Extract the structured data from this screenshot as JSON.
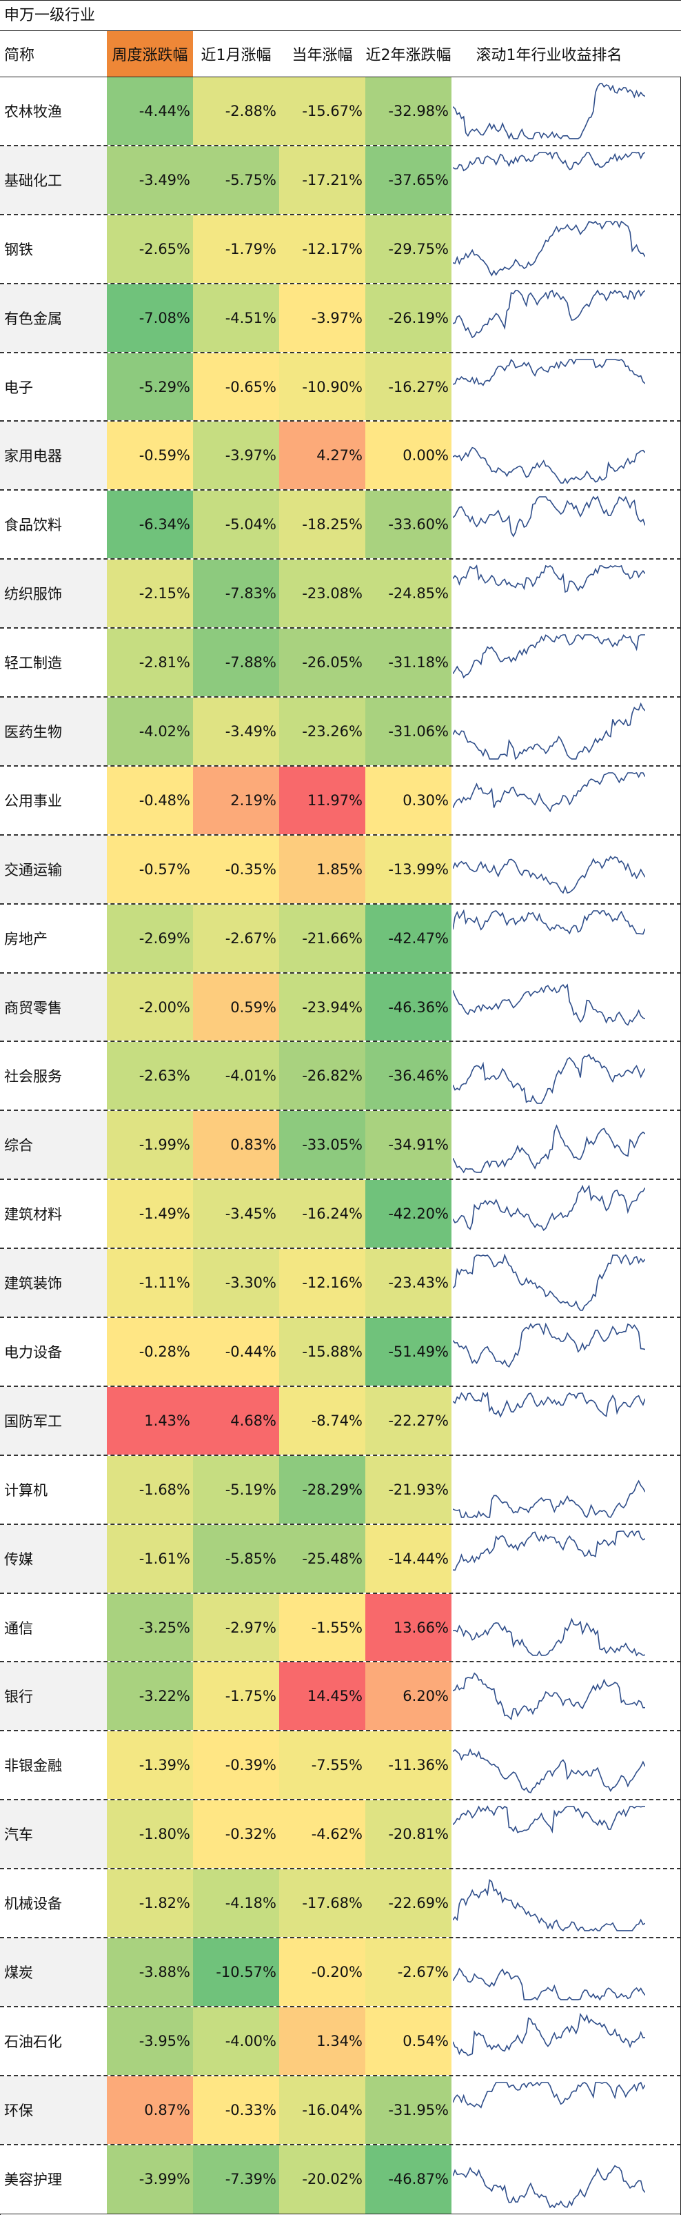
{
  "title": "申万一级行业",
  "header": {
    "name": "简称",
    "weekly": "周度涨跌幅",
    "month": "近1月涨幅",
    "ytd": "当年涨幅",
    "two_year": "近2年涨跌幅",
    "rank": "滚动1年行业收益排名"
  },
  "colors": {
    "header_active": "#ee8737",
    "sparkline": "#2f4e8a"
  },
  "rows": [
    {
      "name": "农林牧渔",
      "weekly": "-4.44%",
      "month": "-2.88%",
      "ytd": "-15.67%",
      "two_year": "-32.98%"
    },
    {
      "name": "基础化工",
      "weekly": "-3.49%",
      "month": "-5.75%",
      "ytd": "-17.21%",
      "two_year": "-37.65%"
    },
    {
      "name": "钢铁",
      "weekly": "-2.65%",
      "month": "-1.79%",
      "ytd": "-12.17%",
      "two_year": "-29.75%"
    },
    {
      "name": "有色金属",
      "weekly": "-7.08%",
      "month": "-4.51%",
      "ytd": "-3.97%",
      "two_year": "-26.19%"
    },
    {
      "name": "电子",
      "weekly": "-5.29%",
      "month": "-0.65%",
      "ytd": "-10.90%",
      "two_year": "-16.27%"
    },
    {
      "name": "家用电器",
      "weekly": "-0.59%",
      "month": "-3.97%",
      "ytd": "4.27%",
      "two_year": "0.00%"
    },
    {
      "name": "食品饮料",
      "weekly": "-6.34%",
      "month": "-5.04%",
      "ytd": "-18.25%",
      "two_year": "-33.60%"
    },
    {
      "name": "纺织服饰",
      "weekly": "-2.15%",
      "month": "-7.83%",
      "ytd": "-23.08%",
      "two_year": "-24.85%"
    },
    {
      "name": "轻工制造",
      "weekly": "-2.81%",
      "month": "-7.88%",
      "ytd": "-26.05%",
      "two_year": "-31.18%"
    },
    {
      "name": "医药生物",
      "weekly": "-4.02%",
      "month": "-3.49%",
      "ytd": "-23.26%",
      "two_year": "-31.06%"
    },
    {
      "name": "公用事业",
      "weekly": "-0.48%",
      "month": "2.19%",
      "ytd": "11.97%",
      "two_year": "0.30%"
    },
    {
      "name": "交通运输",
      "weekly": "-0.57%",
      "month": "-0.35%",
      "ytd": "1.85%",
      "two_year": "-13.99%"
    },
    {
      "name": "房地产",
      "weekly": "-2.69%",
      "month": "-2.67%",
      "ytd": "-21.66%",
      "two_year": "-42.47%"
    },
    {
      "name": "商贸零售",
      "weekly": "-2.00%",
      "month": "0.59%",
      "ytd": "-23.94%",
      "two_year": "-46.36%"
    },
    {
      "name": "社会服务",
      "weekly": "-2.63%",
      "month": "-4.01%",
      "ytd": "-26.82%",
      "two_year": "-36.46%"
    },
    {
      "name": "综合",
      "weekly": "-1.99%",
      "month": "0.83%",
      "ytd": "-33.05%",
      "two_year": "-34.91%"
    },
    {
      "name": "建筑材料",
      "weekly": "-1.49%",
      "month": "-3.45%",
      "ytd": "-16.24%",
      "two_year": "-42.20%"
    },
    {
      "name": "建筑装饰",
      "weekly": "-1.11%",
      "month": "-3.30%",
      "ytd": "-12.16%",
      "two_year": "-23.43%"
    },
    {
      "name": "电力设备",
      "weekly": "-0.28%",
      "month": "-0.44%",
      "ytd": "-15.88%",
      "two_year": "-51.49%"
    },
    {
      "name": "国防军工",
      "weekly": "1.43%",
      "month": "4.68%",
      "ytd": "-8.74%",
      "two_year": "-22.27%"
    },
    {
      "name": "计算机",
      "weekly": "-1.68%",
      "month": "-5.19%",
      "ytd": "-28.29%",
      "two_year": "-21.93%"
    },
    {
      "name": "传媒",
      "weekly": "-1.61%",
      "month": "-5.85%",
      "ytd": "-25.48%",
      "two_year": "-14.44%"
    },
    {
      "name": "通信",
      "weekly": "-3.25%",
      "month": "-2.97%",
      "ytd": "-1.55%",
      "two_year": "13.66%"
    },
    {
      "name": "银行",
      "weekly": "-3.22%",
      "month": "-1.75%",
      "ytd": "14.45%",
      "two_year": "6.20%"
    },
    {
      "name": "非银金融",
      "weekly": "-1.39%",
      "month": "-0.39%",
      "ytd": "-7.55%",
      "two_year": "-11.36%"
    },
    {
      "name": "汽车",
      "weekly": "-1.80%",
      "month": "-0.32%",
      "ytd": "-4.62%",
      "two_year": "-20.81%"
    },
    {
      "name": "机械设备",
      "weekly": "-1.82%",
      "month": "-4.18%",
      "ytd": "-17.68%",
      "two_year": "-22.69%"
    },
    {
      "name": "煤炭",
      "weekly": "-3.88%",
      "month": "-10.57%",
      "ytd": "-0.20%",
      "two_year": "-2.67%"
    },
    {
      "name": "石油石化",
      "weekly": "-3.95%",
      "month": "-4.00%",
      "ytd": "1.34%",
      "two_year": "0.54%"
    },
    {
      "name": "环保",
      "weekly": "0.87%",
      "month": "-0.33%",
      "ytd": "-16.04%",
      "two_year": "-31.95%"
    },
    {
      "name": "美容护理",
      "weekly": "-3.99%",
      "month": "-7.39%",
      "ytd": "-20.02%",
      "two_year": "-46.87%"
    }
  ]
}
